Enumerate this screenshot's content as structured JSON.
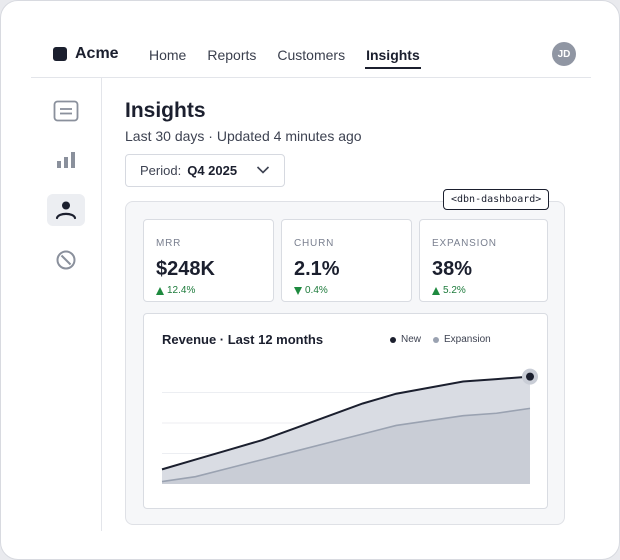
{
  "app": {
    "brand": "Acme"
  },
  "nav": {
    "items": [
      {
        "label": "Home",
        "active": false
      },
      {
        "label": "Reports",
        "active": false
      },
      {
        "label": "Customers",
        "active": false
      },
      {
        "label": "Insights",
        "active": true
      }
    ]
  },
  "user": {
    "initials": "JD"
  },
  "sidebar": {
    "items": [
      {
        "icon": "list-icon",
        "active": false
      },
      {
        "icon": "bar-chart-icon",
        "active": false
      },
      {
        "icon": "person-icon",
        "active": true
      },
      {
        "icon": "blocked-icon",
        "active": false
      }
    ]
  },
  "page": {
    "title": "Insights",
    "subtitle": "Last 30 days · Updated 4 minutes ago"
  },
  "period": {
    "label": "Period:",
    "value": "Q4 2025"
  },
  "dashboard_tag": "<dbn-dashboard>",
  "metrics": [
    {
      "key": "MRR",
      "value": "$248K",
      "delta": "12.4%",
      "direction": "up"
    },
    {
      "key": "CHURN",
      "value": "2.1%",
      "delta": "0.4%",
      "direction": "down"
    },
    {
      "key": "EXPANSION",
      "value": "38%",
      "delta": "5.2%",
      "direction": "up"
    }
  ],
  "colors": {
    "new": "#1b1f2e",
    "expansion": "#9aa2b1",
    "positive": "#1e8a3f"
  },
  "chart_data": {
    "type": "area",
    "title": "Revenue · Last 12 months",
    "x": [
      1,
      2,
      3,
      4,
      5,
      6,
      7,
      8,
      9,
      10,
      11,
      12
    ],
    "series": [
      {
        "name": "New",
        "values": [
          12,
          20,
          28,
          36,
          46,
          56,
          66,
          74,
          79,
          84,
          86,
          88
        ]
      },
      {
        "name": "Expansion",
        "values": [
          2,
          6,
          13,
          20,
          27,
          34,
          41,
          48,
          52,
          56,
          58,
          62
        ]
      }
    ],
    "ylim": [
      0,
      100
    ],
    "grid": true,
    "legend": "top-right",
    "highlight_last": true
  }
}
